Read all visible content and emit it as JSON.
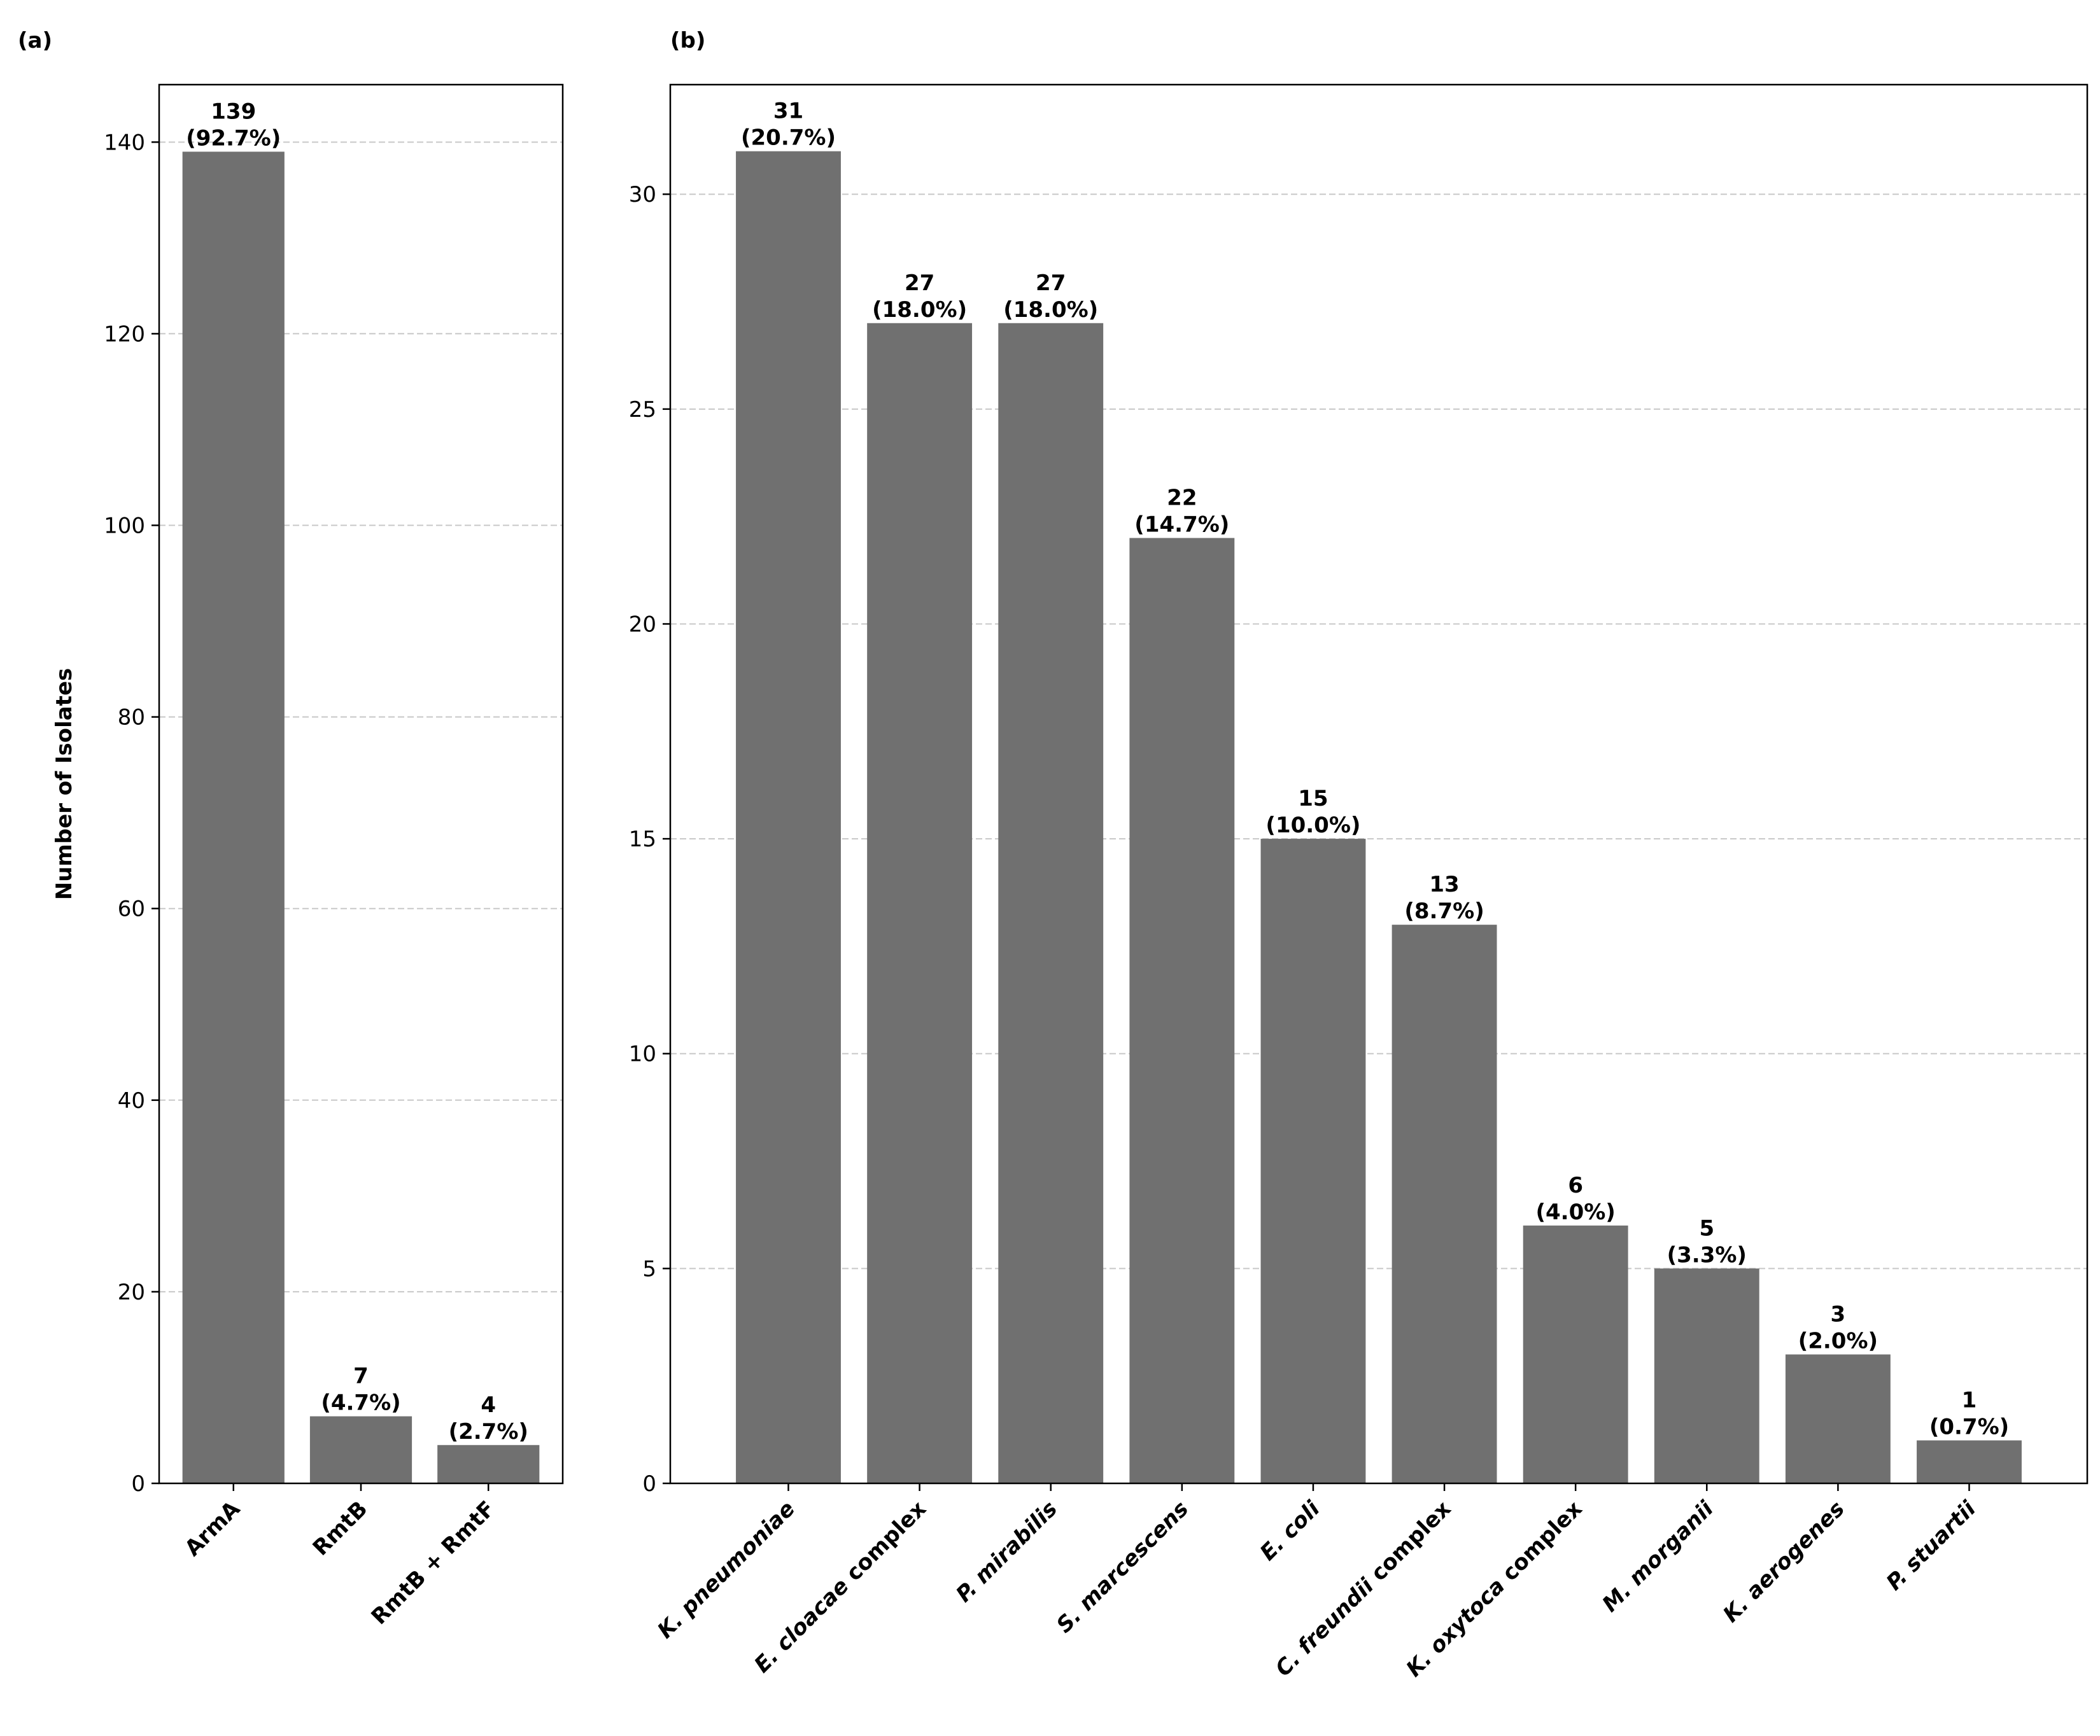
{
  "chart_data": [
    {
      "type": "bar",
      "panel_label": "(a)",
      "y_label": "Number of Isolates",
      "categories": [
        "ArmA",
        "RmtB",
        "RmtB + RmtF"
      ],
      "values": [
        139,
        7,
        4
      ],
      "value_labels": [
        "(92.7%)",
        "(4.7%)",
        "(2.7%)"
      ],
      "color": "#707070",
      "ylim": [
        0,
        146
      ],
      "yticks": [
        0,
        20,
        40,
        60,
        80,
        100,
        120,
        140
      ],
      "grid": true
    },
    {
      "type": "bar",
      "panel_label": "(b)",
      "categories": [
        "K. pneumoniae",
        "E. cloacae complex",
        "P. mirabilis",
        "S. marcescens",
        "E. coli",
        "C. freundii complex",
        "K. oxytoca complex",
        "M. morganii",
        "K. aerogenes",
        "P. stuartii"
      ],
      "values": [
        31,
        27,
        27,
        22,
        15,
        13,
        6,
        5,
        3,
        1
      ],
      "value_labels": [
        "(20.7%)",
        "(18.0%)",
        "(18.0%)",
        "(14.7%)",
        "(10.0%)",
        "(8.7%)",
        "(4.0%)",
        "(3.3%)",
        "(2.0%)",
        "(0.7%)"
      ],
      "color": "#707070",
      "ylim": [
        0,
        32.55
      ],
      "yticks": [
        0,
        5,
        10,
        15,
        20,
        25,
        30
      ],
      "grid": true
    }
  ]
}
